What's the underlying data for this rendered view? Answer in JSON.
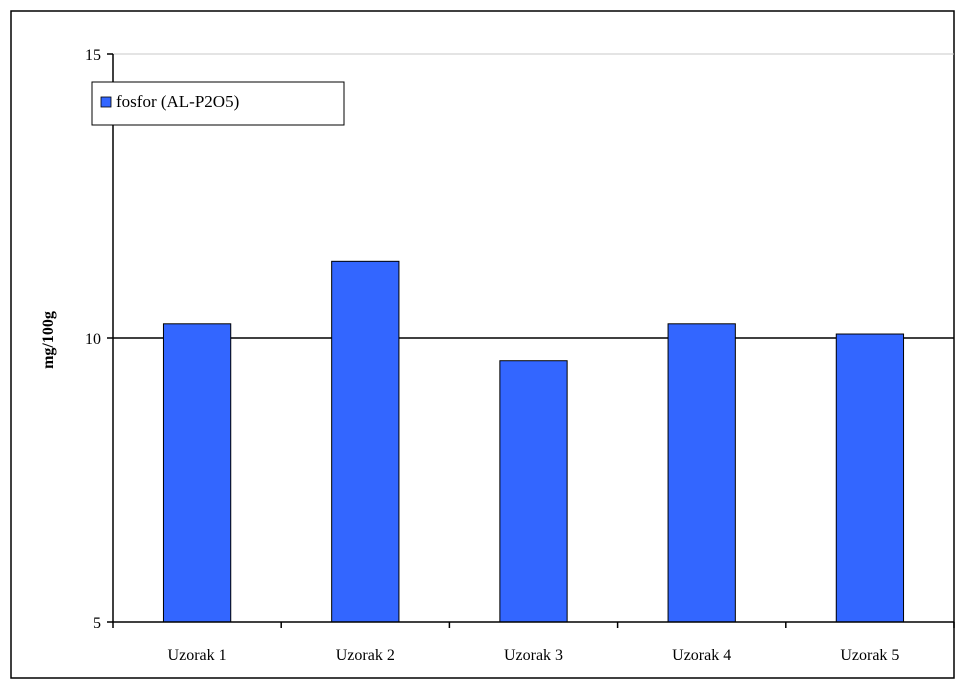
{
  "chart_data": {
    "type": "bar",
    "categories": [
      "Uzorak 1",
      "Uzorak 2",
      "Uzorak 3",
      "Uzorak 4",
      "Uzorak 5"
    ],
    "series": [
      {
        "name": "fosfor (AL-P2O5)",
        "values": [
          10.25,
          11.35,
          9.6,
          10.25,
          10.07
        ],
        "color": "#3366ff"
      }
    ],
    "title": "",
    "xlabel": "",
    "ylabel": "mg/100g",
    "ylim": [
      5,
      15
    ],
    "yticks": [
      5,
      10,
      15
    ],
    "gridlines": [
      10,
      15
    ],
    "grid": true,
    "legend_position": "top-left"
  }
}
